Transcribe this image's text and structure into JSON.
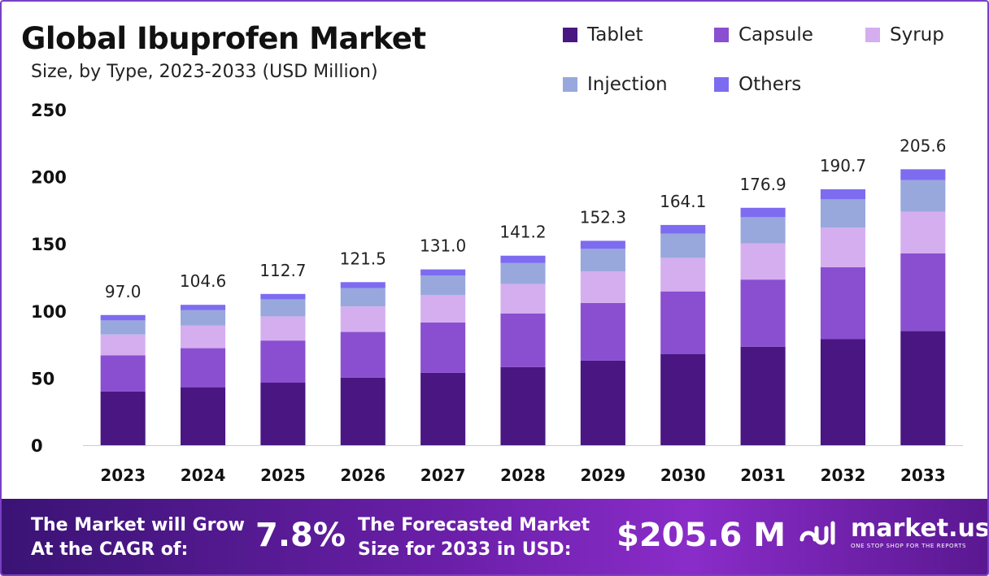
{
  "chart_data": {
    "type": "bar",
    "stacked": true,
    "title": "Global Ibuprofen Market",
    "subtitle": "Size, by Type, 2023-2033 (USD Million)",
    "categories": [
      "2023",
      "2024",
      "2025",
      "2026",
      "2027",
      "2028",
      "2029",
      "2030",
      "2031",
      "2032",
      "2033"
    ],
    "totals": [
      "97.0",
      "104.6",
      "112.7",
      "121.5",
      "131.0",
      "141.2",
      "152.3",
      "164.1",
      "176.9",
      "190.7",
      "205.6"
    ],
    "series": [
      {
        "name": "Tablet",
        "color": "#4a1682",
        "values": [
          40.0,
          43.2,
          46.6,
          50.4,
          54.0,
          58.2,
          63.0,
          68.0,
          73.4,
          79.0,
          85.0
        ]
      },
      {
        "name": "Capsule",
        "color": "#8a4fd0",
        "values": [
          27.0,
          29.1,
          31.4,
          34.0,
          37.5,
          40.0,
          43.0,
          46.6,
          50.0,
          53.6,
          58.0
        ]
      },
      {
        "name": "Syrup",
        "color": "#d5aef0",
        "values": [
          15.5,
          16.8,
          18.0,
          19.0,
          20.5,
          22.0,
          23.5,
          25.0,
          27.0,
          29.5,
          31.0
        ]
      },
      {
        "name": "Injection",
        "color": "#98a8dc",
        "values": [
          10.5,
          11.5,
          12.7,
          13.6,
          14.5,
          15.5,
          16.8,
          18.0,
          19.5,
          21.1,
          23.5
        ]
      },
      {
        "name": "Others",
        "color": "#7d6cf0",
        "values": [
          4.0,
          4.0,
          4.0,
          4.5,
          4.5,
          5.5,
          6.0,
          6.5,
          7.0,
          7.5,
          8.1
        ]
      }
    ],
    "yticks": [
      "0",
      "50",
      "100",
      "150",
      "200",
      "250"
    ],
    "ylim": [
      0,
      250
    ],
    "grid": false,
    "legend_position": "top-right"
  },
  "footer": {
    "cagr_line1": "The Market will Grow",
    "cagr_line2": "At the CAGR of:",
    "cagr_value": "7.8%",
    "forecast_line1": "The Forecasted Market",
    "forecast_line2": "Size for 2033 in USD:",
    "forecast_value": "$205.6 M",
    "brand_name": "market.us",
    "brand_tagline": "ONE STOP SHOP FOR THE REPORTS"
  }
}
